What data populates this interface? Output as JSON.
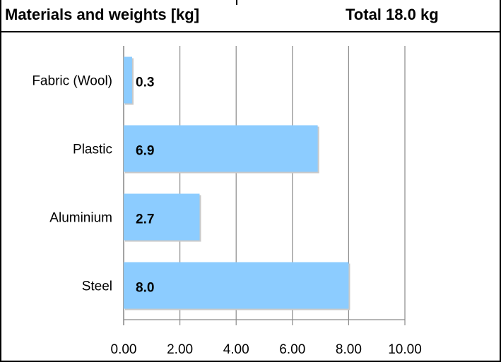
{
  "header": {
    "title": "Materials and weights [kg]",
    "total": "Total 18.0 kg"
  },
  "chart_data": {
    "type": "bar",
    "orientation": "horizontal",
    "categories": [
      "Fabric (Wool)",
      "Plastic",
      "Aluminium",
      "Steel"
    ],
    "values": [
      0.3,
      6.9,
      2.7,
      8.0
    ],
    "value_labels": [
      "0.3",
      "6.9",
      "2.7",
      "8.0"
    ],
    "xlim": [
      0,
      10
    ],
    "x_ticks": [
      0,
      2,
      4,
      6,
      8,
      10
    ],
    "x_tick_labels": [
      "0.00",
      "2.00",
      "4.00",
      "6.00",
      "8.00",
      "10.00"
    ],
    "grid": "vertical",
    "bar_color": "#8cccff"
  }
}
